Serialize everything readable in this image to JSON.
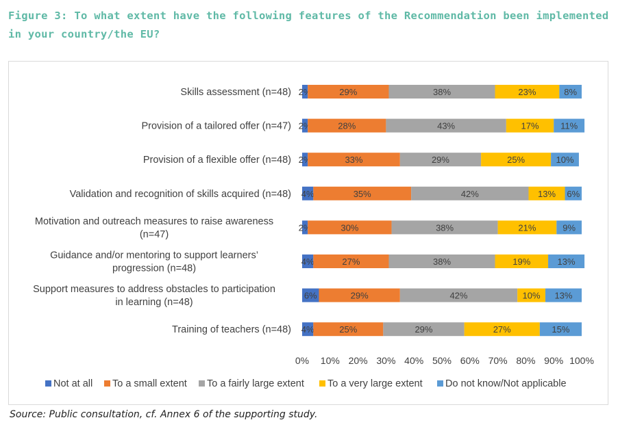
{
  "figure": {
    "title": "Figure 3: To what extent have the following features of the Recommendation been implemented in your country/the EU?",
    "source": "Source: Public consultation, cf. Annex 6 of the supporting study."
  },
  "chart_data": {
    "type": "bar",
    "orientation": "horizontal",
    "stacked": true,
    "percent": true,
    "categories": [
      "Skills assessment (n=48)",
      "Provision of a tailored offer (n=47)",
      "Provision of a flexible offer (n=48)",
      "Validation and recognition of skills acquired (n=48)",
      "Motivation and outreach measures to raise awareness (n=47)",
      "Guidance and/or mentoring to support learners’ progression (n=48)",
      "Support measures to address obstacles to participation in learning  (n=48)",
      "Training of teachers  (n=48)"
    ],
    "series": [
      {
        "name": "Not at all",
        "color": "#4472c4",
        "values": [
          2,
          2,
          2,
          4,
          2,
          4,
          6,
          4
        ]
      },
      {
        "name": "To a small extent",
        "color": "#ed7d31",
        "values": [
          29,
          28,
          33,
          35,
          30,
          27,
          29,
          25
        ]
      },
      {
        "name": "To a fairly large extent",
        "color": "#a5a5a5",
        "values": [
          38,
          43,
          29,
          42,
          38,
          38,
          42,
          29
        ]
      },
      {
        "name": "To a very large extent",
        "color": "#ffc000",
        "values": [
          23,
          17,
          25,
          13,
          21,
          19,
          10,
          27
        ]
      },
      {
        "name": "Do not know/Not applicable",
        "color": "#5b9bd5",
        "values": [
          8,
          11,
          10,
          6,
          9,
          13,
          13,
          15
        ]
      }
    ],
    "xlim": [
      0,
      100
    ],
    "xticks": [
      "0%",
      "10%",
      "20%",
      "30%",
      "40%",
      "50%",
      "60%",
      "70%",
      "80%",
      "90%",
      "100%"
    ],
    "legend_position": "bottom",
    "grid": false
  }
}
